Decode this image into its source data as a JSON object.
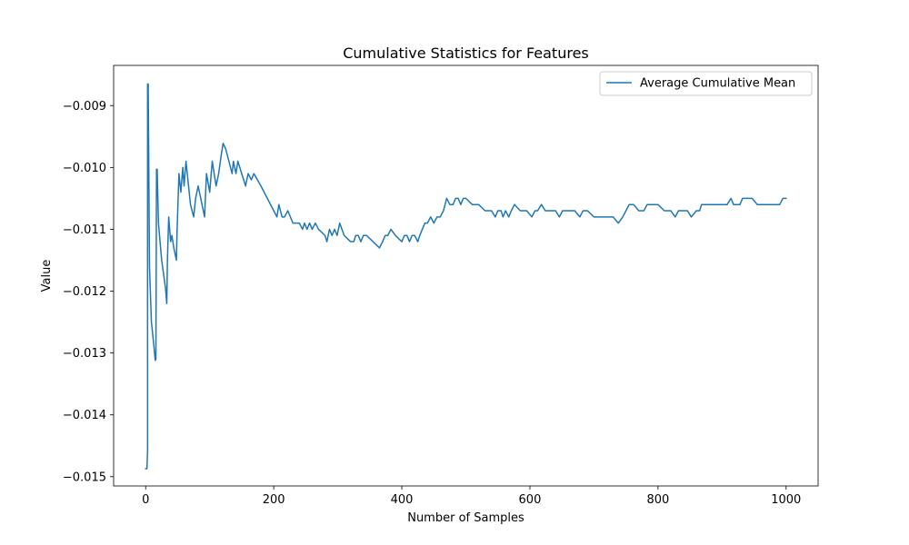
{
  "chart_data": {
    "type": "line",
    "title": "Cumulative Statistics for Features",
    "xlabel": "Number of Samples",
    "ylabel": "Value",
    "xlim": [
      -50,
      1050
    ],
    "ylim": [
      -0.01515,
      -0.00835
    ],
    "xticks": [
      0,
      200,
      400,
      600,
      800,
      1000
    ],
    "xtick_labels": [
      "0",
      "200",
      "400",
      "600",
      "800",
      "1000"
    ],
    "yticks": [
      -0.015,
      -0.014,
      -0.013,
      -0.012,
      -0.011,
      -0.01,
      -0.009
    ],
    "ytick_labels": [
      "−0.015",
      "−0.014",
      "−0.013",
      "−0.012",
      "−0.011",
      "−0.010",
      "−0.009"
    ],
    "grid": false,
    "legend_position": "top-right",
    "series": [
      {
        "name": "Average Cumulative Mean",
        "color": "#1f77b4",
        "points": [
          [
            0,
            -0.01487
          ],
          [
            2,
            -0.01487
          ],
          [
            3,
            -0.0146
          ],
          [
            3,
            -0.00865
          ],
          [
            4,
            -0.00865
          ],
          [
            6,
            -0.0116
          ],
          [
            9,
            -0.0125
          ],
          [
            13,
            -0.0129
          ],
          [
            15,
            -0.01312
          ],
          [
            16,
            -0.0131
          ],
          [
            17,
            -0.01003
          ],
          [
            18,
            -0.01003
          ],
          [
            20,
            -0.0109
          ],
          [
            25,
            -0.0115
          ],
          [
            31,
            -0.01195
          ],
          [
            33,
            -0.0122
          ],
          [
            34,
            -0.0115
          ],
          [
            36,
            -0.0108
          ],
          [
            39,
            -0.0112
          ],
          [
            41,
            -0.0111
          ],
          [
            44,
            -0.0113
          ],
          [
            48,
            -0.0115
          ],
          [
            49,
            -0.01105
          ],
          [
            52,
            -0.0101
          ],
          [
            55,
            -0.0104
          ],
          [
            58,
            -0.01
          ],
          [
            60,
            -0.0103
          ],
          [
            63,
            -0.0099
          ],
          [
            65,
            -0.0101
          ],
          [
            70,
            -0.0106
          ],
          [
            75,
            -0.0108
          ],
          [
            78,
            -0.0105
          ],
          [
            82,
            -0.0103
          ],
          [
            86,
            -0.0105
          ],
          [
            92,
            -0.0108
          ],
          [
            95,
            -0.0101
          ],
          [
            100,
            -0.0104
          ],
          [
            104,
            -0.0099
          ],
          [
            110,
            -0.0103
          ],
          [
            114,
            -0.0101
          ],
          [
            118,
            -0.0098
          ],
          [
            121,
            -0.00961
          ],
          [
            125,
            -0.0097
          ],
          [
            130,
            -0.0099
          ],
          [
            135,
            -0.0101
          ],
          [
            137,
            -0.0099
          ],
          [
            141,
            -0.0101
          ],
          [
            144,
            -0.0099
          ],
          [
            150,
            -0.0101
          ],
          [
            156,
            -0.0103
          ],
          [
            160,
            -0.0101
          ],
          [
            165,
            -0.0102
          ],
          [
            169,
            -0.0101
          ],
          [
            180,
            -0.0103
          ],
          [
            190,
            -0.0105
          ],
          [
            200,
            -0.0107
          ],
          [
            205,
            -0.0108
          ],
          [
            208,
            -0.0106
          ],
          [
            213,
            -0.0108
          ],
          [
            217,
            -0.0108
          ],
          [
            222,
            -0.0107
          ],
          [
            230,
            -0.0109
          ],
          [
            240,
            -0.0109
          ],
          [
            245,
            -0.011
          ],
          [
            248,
            -0.0109
          ],
          [
            252,
            -0.011
          ],
          [
            256,
            -0.0109
          ],
          [
            260,
            -0.011
          ],
          [
            265,
            -0.0109
          ],
          [
            270,
            -0.011
          ],
          [
            280,
            -0.0111
          ],
          [
            283,
            -0.0112
          ],
          [
            287,
            -0.011
          ],
          [
            291,
            -0.0111
          ],
          [
            295,
            -0.011
          ],
          [
            299,
            -0.0111
          ],
          [
            303,
            -0.0109
          ],
          [
            310,
            -0.0111
          ],
          [
            320,
            -0.0112
          ],
          [
            325,
            -0.0112
          ],
          [
            328,
            -0.0111
          ],
          [
            332,
            -0.0111
          ],
          [
            336,
            -0.0112
          ],
          [
            340,
            -0.0111
          ],
          [
            345,
            -0.0111
          ],
          [
            355,
            -0.0112
          ],
          [
            365,
            -0.0113
          ],
          [
            370,
            -0.0112
          ],
          [
            374,
            -0.0111
          ],
          [
            378,
            -0.0111
          ],
          [
            383,
            -0.011
          ],
          [
            390,
            -0.0111
          ],
          [
            400,
            -0.0112
          ],
          [
            404,
            -0.0111
          ],
          [
            408,
            -0.0111
          ],
          [
            412,
            -0.0112
          ],
          [
            416,
            -0.0111
          ],
          [
            420,
            -0.0111
          ],
          [
            425,
            -0.0112
          ],
          [
            428,
            -0.0111
          ],
          [
            432,
            -0.011
          ],
          [
            436,
            -0.0109
          ],
          [
            440,
            -0.0109
          ],
          [
            445,
            -0.0108
          ],
          [
            450,
            -0.0109
          ],
          [
            455,
            -0.0108
          ],
          [
            460,
            -0.0108
          ],
          [
            465,
            -0.0107
          ],
          [
            470,
            -0.0105
          ],
          [
            475,
            -0.0106
          ],
          [
            480,
            -0.0106
          ],
          [
            484,
            -0.0105
          ],
          [
            488,
            -0.0105
          ],
          [
            492,
            -0.0106
          ],
          [
            496,
            -0.0105
          ],
          [
            500,
            -0.0105
          ],
          [
            510,
            -0.0106
          ],
          [
            520,
            -0.0106
          ],
          [
            530,
            -0.0107
          ],
          [
            540,
            -0.0107
          ],
          [
            546,
            -0.0108
          ],
          [
            550,
            -0.0107
          ],
          [
            555,
            -0.0107
          ],
          [
            558,
            -0.0108
          ],
          [
            562,
            -0.0107
          ],
          [
            567,
            -0.0108
          ],
          [
            571,
            -0.0107
          ],
          [
            576,
            -0.0106
          ],
          [
            585,
            -0.0107
          ],
          [
            595,
            -0.0107
          ],
          [
            603,
            -0.0108
          ],
          [
            608,
            -0.0107
          ],
          [
            612,
            -0.0107
          ],
          [
            618,
            -0.0106
          ],
          [
            624,
            -0.0107
          ],
          [
            630,
            -0.0107
          ],
          [
            640,
            -0.0107
          ],
          [
            646,
            -0.0108
          ],
          [
            651,
            -0.0107
          ],
          [
            660,
            -0.0107
          ],
          [
            670,
            -0.0107
          ],
          [
            678,
            -0.0108
          ],
          [
            683,
            -0.0107
          ],
          [
            690,
            -0.0107
          ],
          [
            700,
            -0.0108
          ],
          [
            710,
            -0.0108
          ],
          [
            720,
            -0.0108
          ],
          [
            730,
            -0.0108
          ],
          [
            738,
            -0.0109
          ],
          [
            745,
            -0.0108
          ],
          [
            750,
            -0.0107
          ],
          [
            755,
            -0.0106
          ],
          [
            762,
            -0.0106
          ],
          [
            770,
            -0.0107
          ],
          [
            778,
            -0.0107
          ],
          [
            783,
            -0.0106
          ],
          [
            790,
            -0.0106
          ],
          [
            800,
            -0.0106
          ],
          [
            810,
            -0.0107
          ],
          [
            820,
            -0.0107
          ],
          [
            827,
            -0.0108
          ],
          [
            832,
            -0.0107
          ],
          [
            838,
            -0.0107
          ],
          [
            846,
            -0.0107
          ],
          [
            852,
            -0.0108
          ],
          [
            860,
            -0.0107
          ],
          [
            865,
            -0.0107
          ],
          [
            868,
            -0.0106
          ],
          [
            875,
            -0.0106
          ],
          [
            880,
            -0.0106
          ],
          [
            887,
            -0.0106
          ],
          [
            893,
            -0.0106
          ],
          [
            900,
            -0.0106
          ],
          [
            905,
            -0.0106
          ],
          [
            908,
            -0.0106
          ],
          [
            914,
            -0.0105
          ],
          [
            918,
            -0.0106
          ],
          [
            922,
            -0.0106
          ],
          [
            928,
            -0.0106
          ],
          [
            932,
            -0.0105
          ],
          [
            940,
            -0.0105
          ],
          [
            947,
            -0.0105
          ],
          [
            955,
            -0.0106
          ],
          [
            960,
            -0.0106
          ],
          [
            965,
            -0.0106
          ],
          [
            970,
            -0.0106
          ],
          [
            975,
            -0.0106
          ],
          [
            980,
            -0.0106
          ],
          [
            985,
            -0.0106
          ],
          [
            990,
            -0.0106
          ],
          [
            995,
            -0.0105
          ],
          [
            1000,
            -0.0105
          ]
        ]
      }
    ]
  }
}
